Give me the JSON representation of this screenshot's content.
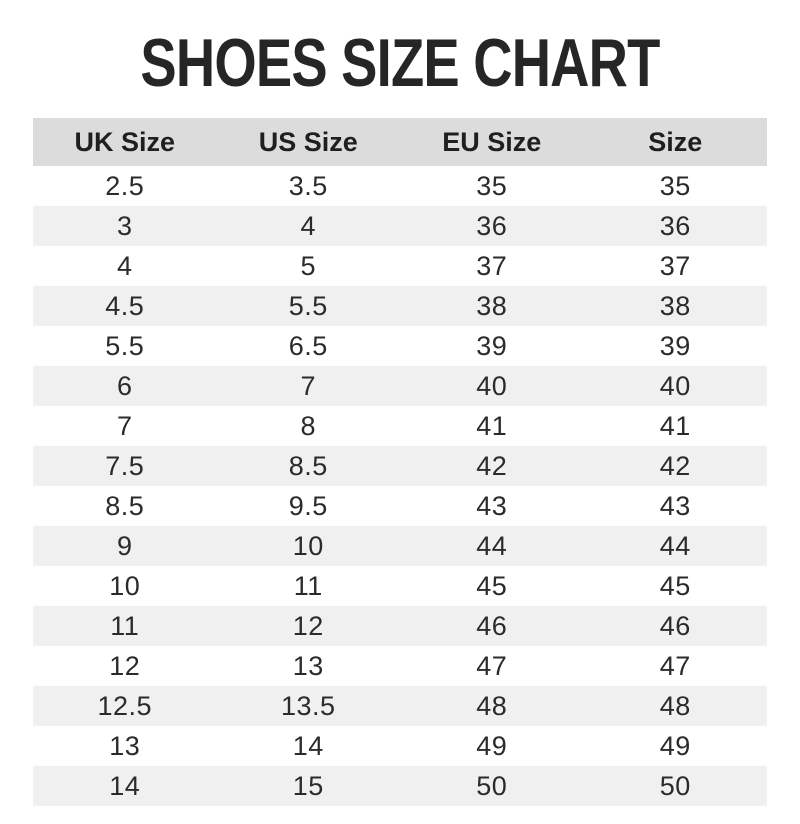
{
  "title": "SHOES SIZE CHART",
  "colors": {
    "header_bg": "#dcdcdc",
    "row_alt_bg": "#f0f0f0",
    "title_color": "#262626",
    "header_text": "#1f1f1f",
    "body_text": "#2b2b2b",
    "page_bg": "#ffffff"
  },
  "chart_data": {
    "type": "table",
    "title": "SHOES SIZE CHART",
    "columns": [
      "UK Size",
      "US Size",
      "EU Size",
      "Size"
    ],
    "rows": [
      [
        "2.5",
        "3.5",
        "35",
        "35"
      ],
      [
        "3",
        "4",
        "36",
        "36"
      ],
      [
        "4",
        "5",
        "37",
        "37"
      ],
      [
        "4.5",
        "5.5",
        "38",
        "38"
      ],
      [
        "5.5",
        "6.5",
        "39",
        "39"
      ],
      [
        "6",
        "7",
        "40",
        "40"
      ],
      [
        "7",
        "8",
        "41",
        "41"
      ],
      [
        "7.5",
        "8.5",
        "42",
        "42"
      ],
      [
        "8.5",
        "9.5",
        "43",
        "43"
      ],
      [
        "9",
        "10",
        "44",
        "44"
      ],
      [
        "10",
        "11",
        "45",
        "45"
      ],
      [
        "11",
        "12",
        "46",
        "46"
      ],
      [
        "12",
        "13",
        "47",
        "47"
      ],
      [
        "12.5",
        "13.5",
        "48",
        "48"
      ],
      [
        "13",
        "14",
        "49",
        "49"
      ],
      [
        "14",
        "15",
        "50",
        "50"
      ]
    ],
    "layout": {
      "header_background": "#dcdcdc",
      "alternating_row_background": "#f0f0f0",
      "grid": "off",
      "text_align": "center"
    }
  }
}
